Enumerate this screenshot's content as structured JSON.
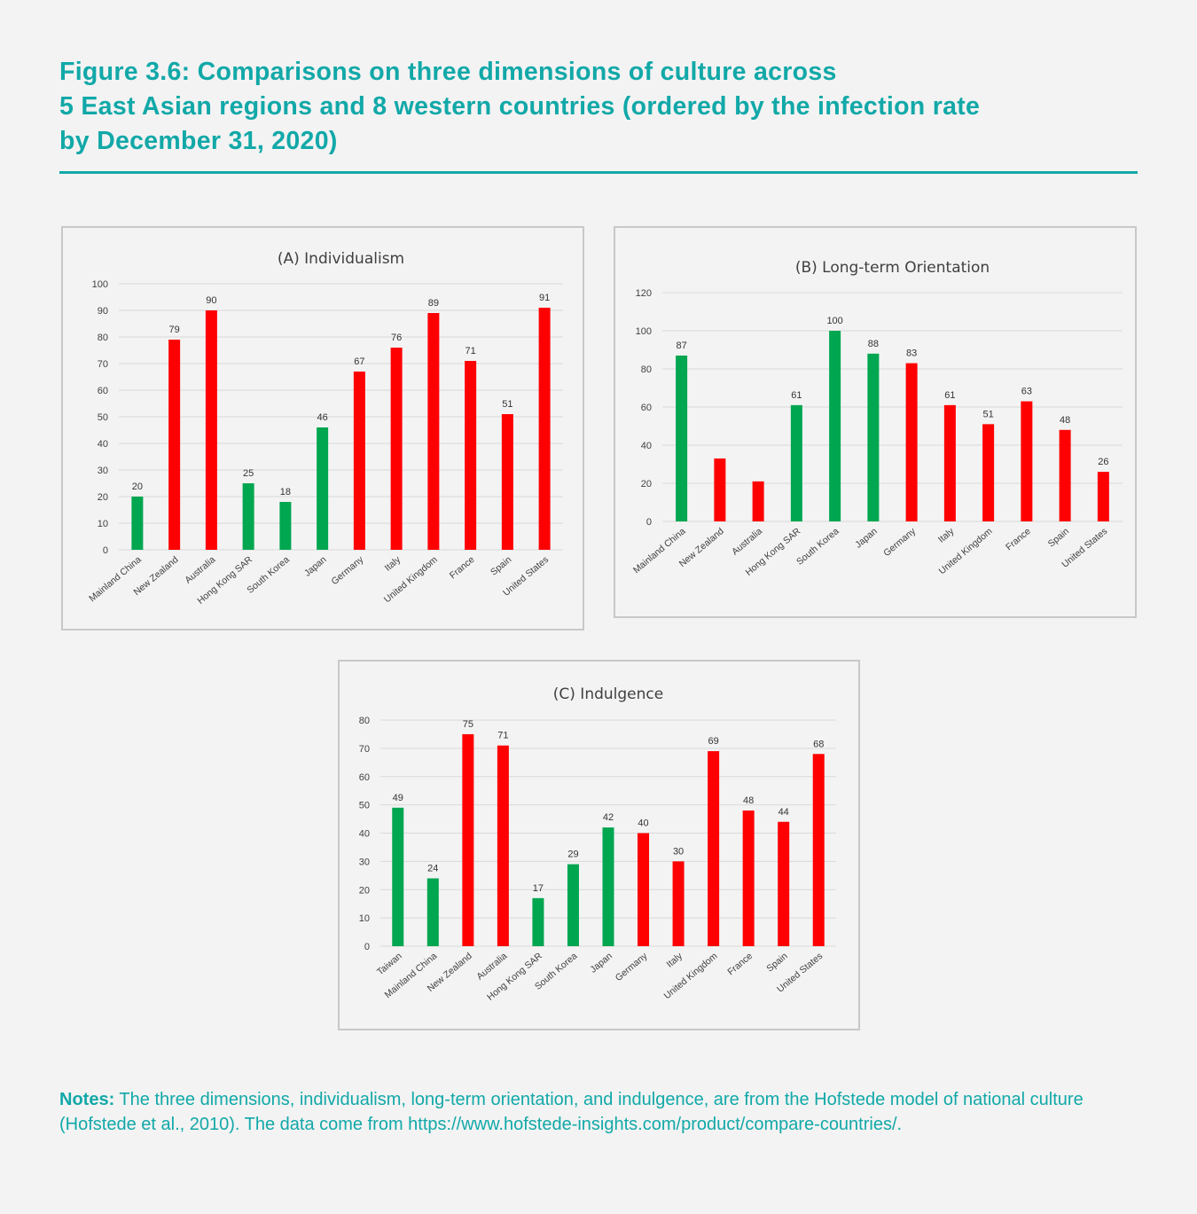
{
  "title_lines": [
    "Figure 3.6: Comparisons on three dimensions of culture across",
    "5 East Asian regions and 8 western countries (ordered by the infection rate",
    "by December 31, 2020)"
  ],
  "colors": {
    "accent": "#12a8a8",
    "east_asian": "#00a650",
    "western": "#ff0000",
    "grid": "#d9d9d9",
    "text": "#404040"
  },
  "chart_data": [
    {
      "type": "bar",
      "title": "(A) Individualism",
      "ylim": [
        0,
        100
      ],
      "yticks": [
        0,
        10,
        20,
        30,
        40,
        50,
        60,
        70,
        80,
        90,
        100
      ],
      "grid": true,
      "categories": [
        "Mainland China",
        "New Zealand",
        "Australia",
        "Hong Kong SAR",
        "South Korea",
        "Japan",
        "Germany",
        "Italy",
        "United Kingdom",
        "France",
        "Spain",
        "United States"
      ],
      "values": [
        20,
        79,
        90,
        25,
        18,
        46,
        67,
        76,
        89,
        71,
        51,
        91
      ],
      "groups": [
        "east_asian",
        "western",
        "western",
        "east_asian",
        "east_asian",
        "east_asian",
        "western",
        "western",
        "western",
        "western",
        "western",
        "western"
      ],
      "labels": [
        "20",
        "79",
        "90",
        "25",
        "18",
        "46",
        "67",
        "76",
        "89",
        "71",
        "51",
        "91"
      ]
    },
    {
      "type": "bar",
      "title": "(B) Long-term Orientation",
      "ylim": [
        0,
        120
      ],
      "yticks": [
        0,
        20,
        40,
        60,
        80,
        100,
        120
      ],
      "grid": true,
      "categories": [
        "Mainland China",
        "New Zealand",
        "Australia",
        "Hong Kong SAR",
        "South Korea",
        "Japan",
        "Germany",
        "Italy",
        "United Kingdom",
        "France",
        "Spain",
        "United States"
      ],
      "values": [
        87,
        33,
        21,
        61,
        100,
        88,
        83,
        61,
        51,
        63,
        48,
        26
      ],
      "groups": [
        "east_asian",
        "western",
        "western",
        "east_asian",
        "east_asian",
        "east_asian",
        "western",
        "western",
        "western",
        "western",
        "western",
        "western"
      ],
      "labels": [
        "87",
        "",
        "",
        "61",
        "100",
        "88",
        "83",
        "61",
        "51",
        "63",
        "48",
        "26"
      ]
    },
    {
      "type": "bar",
      "title": "(C) Indulgence",
      "ylim": [
        0,
        80
      ],
      "yticks": [
        0,
        10,
        20,
        30,
        40,
        50,
        60,
        70,
        80
      ],
      "grid": true,
      "categories": [
        "Taiwan",
        "Mainland China",
        "New Zealand",
        "Australia",
        "Hong Kong SAR",
        "South Korea",
        "Japan",
        "Germany",
        "Italy",
        "United Kingdom",
        "France",
        "Spain",
        "United States"
      ],
      "values": [
        49,
        24,
        75,
        71,
        17,
        29,
        42,
        40,
        30,
        69,
        48,
        44,
        68
      ],
      "groups": [
        "east_asian",
        "east_asian",
        "western",
        "western",
        "east_asian",
        "east_asian",
        "east_asian",
        "western",
        "western",
        "western",
        "western",
        "western",
        "western"
      ],
      "labels": [
        "49",
        "24",
        "75",
        "71",
        "17",
        "29",
        "42",
        "40",
        "30",
        "69",
        "48",
        "44",
        "68"
      ]
    }
  ],
  "notes": {
    "label": "Notes:",
    "text": " The three dimensions, individualism, long-term orientation, and indulgence, are from the Hofstede model of national culture (Hofstede et al., 2010). The data come from https://www.hofstede-insights.com/product/compare-countries/."
  }
}
